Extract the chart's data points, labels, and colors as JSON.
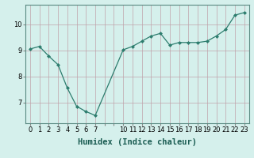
{
  "x": [
    0,
    1,
    2,
    3,
    4,
    5,
    6,
    7,
    10,
    11,
    12,
    13,
    14,
    15,
    16,
    17,
    18,
    19,
    20,
    21,
    22,
    23
  ],
  "y": [
    9.05,
    9.15,
    8.78,
    8.45,
    7.55,
    6.85,
    6.65,
    6.5,
    9.02,
    9.15,
    9.35,
    9.55,
    9.65,
    9.2,
    9.3,
    9.3,
    9.3,
    9.35,
    9.55,
    9.8,
    10.35,
    10.45
  ],
  "line_color": "#2d7d6e",
  "bg_color": "#d5f0ec",
  "grid_color": "#c0a0a8",
  "xlabel": "Humidex (Indice chaleur)",
  "xlabel_fontsize": 7.5,
  "tick_fontsize": 6,
  "yticks": [
    7,
    8,
    9,
    10
  ],
  "ylim": [
    6.2,
    10.75
  ],
  "xlim": [
    -0.5,
    23.5
  ],
  "xtick_positions": [
    0,
    1,
    2,
    3,
    4,
    5,
    6,
    7,
    8,
    9,
    10,
    11,
    12,
    13,
    14,
    15,
    16,
    17,
    18,
    19,
    20,
    21,
    22,
    23
  ],
  "xtick_labels": [
    "0",
    "1",
    "2",
    "3",
    "4",
    "5",
    "6",
    "7",
    "",
    "",
    "10",
    "11",
    "12",
    "13",
    "14",
    "15",
    "16",
    "17",
    "18",
    "19",
    "20",
    "21",
    "22",
    "23"
  ]
}
